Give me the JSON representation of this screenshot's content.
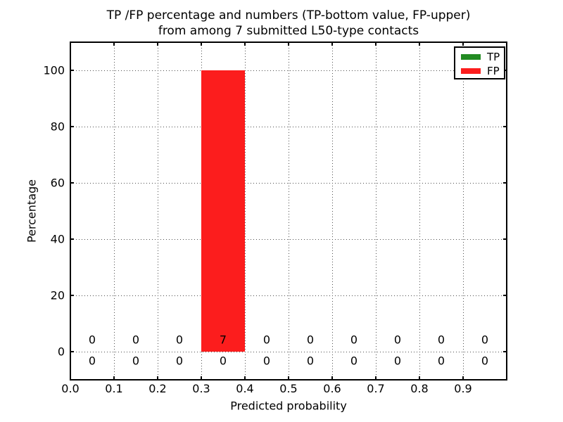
{
  "figure": {
    "title_line1": "TP /FP percentage and numbers (TP-bottom value, FP-upper)",
    "title_line2": "from among 7 submitted L50-type contacts",
    "xlabel": "Predicted probability",
    "ylabel": "Percentage"
  },
  "legend": {
    "items": [
      {
        "label": "TP",
        "color": "#228b22"
      },
      {
        "label": "FP",
        "color": "#fc1d1d"
      }
    ]
  },
  "chart_data": {
    "type": "bar",
    "title": "TP /FP percentage and numbers (TP-bottom value, FP-upper) from among 7 submitted L50-type contacts",
    "xlabel": "Predicted probability",
    "ylabel": "Percentage",
    "xlim": [
      0.0,
      1.0
    ],
    "ylim": [
      -10,
      110
    ],
    "xtick_values": [
      0.0,
      0.1,
      0.2,
      0.3,
      0.4,
      0.5,
      0.6,
      0.7,
      0.8,
      0.9
    ],
    "xtick_labels": [
      "0.0",
      "0.1",
      "0.2",
      "0.3",
      "0.4",
      "0.5",
      "0.6",
      "0.7",
      "0.8",
      "0.9"
    ],
    "ytick_values": [
      0,
      20,
      40,
      60,
      80,
      100
    ],
    "ytick_labels": [
      "0",
      "20",
      "40",
      "60",
      "80",
      "100"
    ],
    "grid": true,
    "grid_style": "dotted",
    "legend_position": "upper right",
    "bin_edges": [
      0.0,
      0.1,
      0.2,
      0.3,
      0.4,
      0.5,
      0.6,
      0.7,
      0.8,
      0.9,
      1.0
    ],
    "bin_centers": [
      0.05,
      0.15,
      0.25,
      0.35,
      0.45,
      0.55,
      0.65,
      0.75,
      0.85,
      0.95
    ],
    "stacked": true,
    "series": [
      {
        "name": "TP",
        "color": "#228b22",
        "percentages": [
          0,
          0,
          0,
          0,
          0,
          0,
          0,
          0,
          0,
          0
        ],
        "counts": [
          0,
          0,
          0,
          0,
          0,
          0,
          0,
          0,
          0,
          0
        ]
      },
      {
        "name": "FP",
        "color": "#fc1d1d",
        "percentages": [
          0,
          0,
          0,
          100,
          0,
          0,
          0,
          0,
          0,
          0
        ],
        "counts": [
          0,
          0,
          0,
          7,
          0,
          0,
          0,
          0,
          0,
          0
        ]
      }
    ],
    "total_contacts": 7
  }
}
